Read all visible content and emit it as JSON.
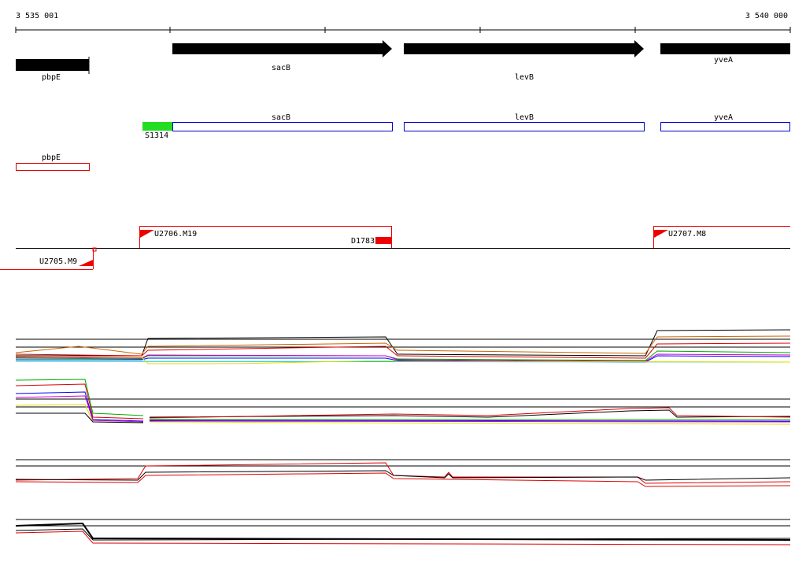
{
  "ruler": {
    "start": "3 535 001",
    "end": "3 540 000"
  },
  "genes": [
    "pbpE",
    "sacB",
    "levB",
    "yveA"
  ],
  "features": [
    "sacB",
    "levB",
    "yveA"
  ],
  "feature_extra": "S1314",
  "regions": [
    "pbpE"
  ],
  "transcripts": [
    "U2706.M19",
    "D1783",
    "U2707.M8",
    "U2705.M9"
  ]
}
